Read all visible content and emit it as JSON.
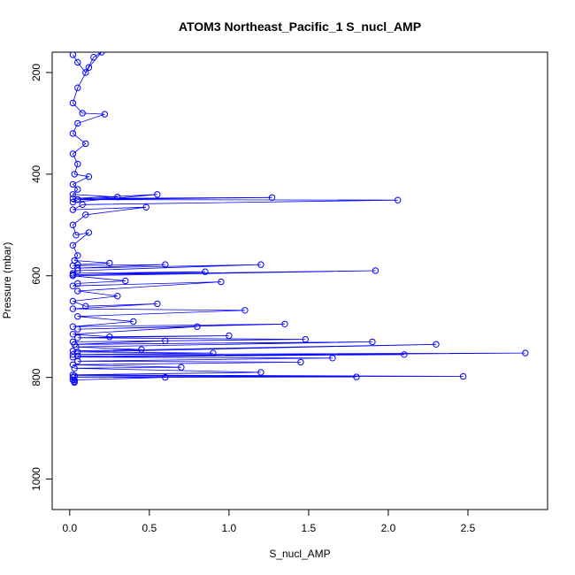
{
  "chart_data": {
    "type": "scatter",
    "title": "ATOM3 Northeast_Pacific_1 S_nucl_AMP",
    "xlabel": "S_nucl_AMP",
    "ylabel": "Pressure (mbar)",
    "xlim": [
      -0.11,
      3.0
    ],
    "ylim": [
      1060,
      160
    ],
    "y_reversed": true,
    "x_ticks": [
      "0.0",
      "0.5",
      "1.0",
      "1.5",
      "2.0",
      "2.5"
    ],
    "x_tick_values": [
      0,
      0.5,
      1.0,
      1.5,
      2.0,
      2.5
    ],
    "y_ticks": [
      "200",
      "400",
      "600",
      "800",
      "1000"
    ],
    "y_tick_values": [
      200,
      400,
      600,
      800,
      1000
    ],
    "grid": false,
    "marker": "open-circle",
    "connected": true,
    "color": "#0000ff",
    "series": [
      {
        "x": [
          0.02,
          0.05,
          0.1,
          0.15,
          0.2,
          0.12,
          0.05,
          0.02,
          0.08,
          0.22,
          0.05,
          0.02,
          0.1,
          0.02,
          0.05,
          0.03,
          0.12,
          0.02,
          0.05,
          0.02,
          0.3,
          0.05,
          0.02,
          0.55,
          0.02,
          1.27,
          0.05,
          2.06,
          0.08,
          0.02,
          0.48,
          0.1,
          0.02,
          0.04,
          0.12,
          0.02,
          0.05,
          0.03,
          0.25,
          0.05,
          0.02,
          0.6,
          0.05,
          1.2,
          0.05,
          0.02,
          0.85,
          0.02,
          1.92,
          0.02,
          0.35,
          0.05,
          0.02,
          0.95,
          0.05,
          0.3,
          0.02,
          0.1,
          0.55,
          0.02,
          1.1,
          0.05,
          0.4,
          0.02,
          1.35,
          0.05,
          0.8,
          0.02,
          0.25,
          1.0,
          0.05,
          1.48,
          0.02,
          0.6,
          0.03,
          1.9,
          0.04,
          0.45,
          0.02,
          2.3,
          0.05,
          0.9,
          0.02,
          2.86,
          0.05,
          2.1,
          0.02,
          1.65,
          0.05,
          1.45,
          0.02,
          0.7,
          0.03,
          1.2,
          0.02,
          2.47,
          0.03,
          1.8,
          0.02,
          0.6,
          0.03,
          0.03,
          0.02,
          0.03
        ],
        "y": [
          165,
          180,
          200,
          170,
          160,
          190,
          230,
          260,
          280,
          282,
          300,
          320,
          340,
          360,
          380,
          400,
          405,
          420,
          430,
          440,
          445,
          450,
          455,
          440,
          448,
          446,
          450,
          451,
          460,
          470,
          465,
          480,
          500,
          520,
          515,
          540,
          560,
          570,
          575,
          578,
          580,
          578,
          585,
          578,
          590,
          595,
          592,
          598,
          590,
          600,
          610,
          615,
          620,
          612,
          630,
          640,
          650,
          660,
          655,
          665,
          668,
          680,
          690,
          700,
          695,
          705,
          700,
          715,
          720,
          718,
          722,
          725,
          730,
          728,
          735,
          730,
          740,
          745,
          748,
          735,
          750,
          752,
          755,
          752,
          758,
          755,
          760,
          762,
          768,
          770,
          775,
          780,
          782,
          790,
          795,
          798,
          797,
          799,
          800,
          800,
          805,
          810,
          805,
          808
        ]
      }
    ]
  }
}
